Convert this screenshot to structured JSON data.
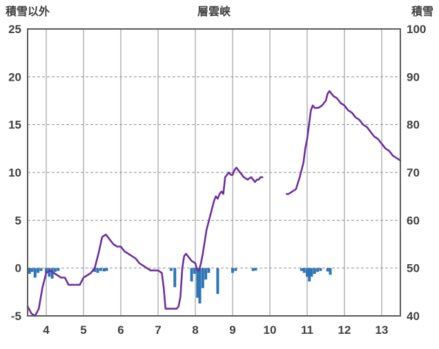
{
  "chart_data": {
    "type": "line",
    "title": "層雲峡",
    "left_axis_label": "積雪以外",
    "right_axis_label": "積雪",
    "xlim": [
      3.5,
      13.5
    ],
    "x_ticks": [
      4,
      5,
      6,
      7,
      8,
      9,
      10,
      11,
      12,
      13
    ],
    "left_ylim": [
      -5,
      25
    ],
    "left_ticks": [
      -5,
      0,
      5,
      10,
      15,
      20,
      25
    ],
    "right_ylim": [
      40,
      100
    ],
    "right_ticks": [
      40,
      50,
      60,
      70,
      80,
      90,
      100
    ],
    "grid": true,
    "line_color": "#6B2FA0",
    "bar_color": "#2E75B6",
    "grid_color": "#8c8c8c",
    "border_color": "#595959",
    "snow_depth_line": {
      "axis": "right",
      "segments": [
        [
          [
            3.5,
            42
          ],
          [
            3.6,
            40.5
          ],
          [
            3.7,
            40
          ],
          [
            3.8,
            41.5
          ],
          [
            3.9,
            46
          ],
          [
            4.0,
            49
          ],
          [
            4.1,
            49.5
          ],
          [
            4.2,
            49
          ],
          [
            4.3,
            48.5
          ],
          [
            4.4,
            48
          ],
          [
            4.5,
            48
          ],
          [
            4.6,
            46.5
          ],
          [
            4.7,
            46.5
          ],
          [
            4.8,
            46.5
          ],
          [
            4.9,
            46.5
          ],
          [
            5.0,
            48
          ],
          [
            5.1,
            48.5
          ],
          [
            5.2,
            49
          ],
          [
            5.3,
            50
          ],
          [
            5.4,
            53
          ],
          [
            5.5,
            56.5
          ],
          [
            5.6,
            57
          ],
          [
            5.65,
            56.5
          ],
          [
            5.7,
            56
          ],
          [
            5.8,
            55
          ],
          [
            5.9,
            54.5
          ],
          [
            6.0,
            54.5
          ],
          [
            6.1,
            53.5
          ],
          [
            6.2,
            53
          ],
          [
            6.3,
            52.5
          ],
          [
            6.4,
            52
          ],
          [
            6.5,
            51
          ],
          [
            6.6,
            50.5
          ],
          [
            6.7,
            50
          ],
          [
            6.8,
            49.5
          ],
          [
            6.9,
            49.5
          ],
          [
            7.0,
            49.5
          ],
          [
            7.1,
            49
          ],
          [
            7.15,
            46
          ],
          [
            7.2,
            41.5
          ],
          [
            7.3,
            41.5
          ],
          [
            7.4,
            41.5
          ],
          [
            7.5,
            41.5
          ],
          [
            7.55,
            42
          ],
          [
            7.6,
            44
          ],
          [
            7.65,
            50
          ],
          [
            7.7,
            52.5
          ],
          [
            7.75,
            53
          ],
          [
            7.8,
            52.5
          ],
          [
            7.85,
            52
          ],
          [
            7.9,
            51.5
          ],
          [
            8.0,
            51
          ],
          [
            8.05,
            49.5
          ],
          [
            8.1,
            49.5
          ],
          [
            8.15,
            51
          ],
          [
            8.2,
            53
          ],
          [
            8.3,
            58
          ],
          [
            8.4,
            61
          ],
          [
            8.5,
            64
          ],
          [
            8.55,
            65
          ],
          [
            8.6,
            64.5
          ],
          [
            8.65,
            65.5
          ],
          [
            8.7,
            66
          ],
          [
            8.75,
            65.5
          ],
          [
            8.8,
            69
          ],
          [
            8.85,
            69.5
          ],
          [
            8.9,
            70
          ],
          [
            8.95,
            69.5
          ],
          [
            9.0,
            69.5
          ],
          [
            9.05,
            70.5
          ],
          [
            9.1,
            71
          ],
          [
            9.15,
            70.5
          ],
          [
            9.2,
            70
          ],
          [
            9.3,
            69
          ],
          [
            9.4,
            68.5
          ],
          [
            9.5,
            69
          ],
          [
            9.55,
            68.5
          ],
          [
            9.6,
            68
          ],
          [
            9.65,
            68.5
          ],
          [
            9.7,
            68.5
          ],
          [
            9.75,
            69
          ],
          [
            9.8,
            69
          ]
        ],
        [
          [
            10.45,
            65.5
          ],
          [
            10.5,
            65.5
          ],
          [
            10.6,
            66
          ],
          [
            10.7,
            66.5
          ],
          [
            10.8,
            69
          ],
          [
            10.9,
            72
          ],
          [
            10.95,
            75
          ],
          [
            11.0,
            77
          ],
          [
            11.05,
            80
          ],
          [
            11.1,
            83
          ],
          [
            11.15,
            84
          ],
          [
            11.2,
            83.5
          ],
          [
            11.3,
            83.5
          ],
          [
            11.4,
            84
          ],
          [
            11.5,
            85
          ],
          [
            11.55,
            86.5
          ],
          [
            11.6,
            87
          ],
          [
            11.65,
            86.5
          ],
          [
            11.7,
            86
          ],
          [
            11.8,
            85.5
          ],
          [
            11.9,
            84.5
          ],
          [
            12.0,
            84
          ],
          [
            12.1,
            83
          ],
          [
            12.2,
            82.5
          ],
          [
            12.3,
            81.5
          ],
          [
            12.4,
            81
          ],
          [
            12.5,
            80
          ],
          [
            12.6,
            79.5
          ],
          [
            12.7,
            78.5
          ],
          [
            12.8,
            77.5
          ],
          [
            12.9,
            77
          ],
          [
            13.0,
            76
          ],
          [
            13.1,
            75
          ],
          [
            13.2,
            74.5
          ],
          [
            13.3,
            73.5
          ],
          [
            13.4,
            73
          ],
          [
            13.5,
            72.5
          ]
        ]
      ]
    },
    "bars": {
      "axis": "left",
      "points": [
        [
          3.55,
          -0.6
        ],
        [
          3.62,
          -0.4
        ],
        [
          3.7,
          -1.0
        ],
        [
          3.78,
          -0.5
        ],
        [
          3.86,
          -0.3
        ],
        [
          4.0,
          -0.5
        ],
        [
          4.08,
          -0.9
        ],
        [
          4.16,
          -1.1
        ],
        [
          4.24,
          -0.4
        ],
        [
          4.32,
          -0.3
        ],
        [
          5.3,
          -0.4
        ],
        [
          5.38,
          -0.5
        ],
        [
          5.46,
          -0.3
        ],
        [
          5.55,
          -0.35
        ],
        [
          5.62,
          -0.3
        ],
        [
          7.35,
          -0.3
        ],
        [
          7.45,
          -2.0
        ],
        [
          7.9,
          -1.4
        ],
        [
          7.98,
          -0.6
        ],
        [
          8.06,
          -3.1
        ],
        [
          8.12,
          -3.7
        ],
        [
          8.2,
          -2.1
        ],
        [
          8.28,
          -1.2
        ],
        [
          8.36,
          -0.5
        ],
        [
          8.6,
          -2.7
        ],
        [
          9.0,
          -0.5
        ],
        [
          9.08,
          -0.3
        ],
        [
          9.55,
          -0.3
        ],
        [
          9.62,
          -0.25
        ],
        [
          10.85,
          -0.3
        ],
        [
          10.92,
          -0.5
        ],
        [
          11.0,
          -0.9
        ],
        [
          11.06,
          -1.4
        ],
        [
          11.12,
          -0.9
        ],
        [
          11.2,
          -0.6
        ],
        [
          11.28,
          -0.4
        ],
        [
          11.36,
          -0.3
        ],
        [
          11.55,
          -0.35
        ],
        [
          11.62,
          -0.7
        ]
      ]
    }
  }
}
